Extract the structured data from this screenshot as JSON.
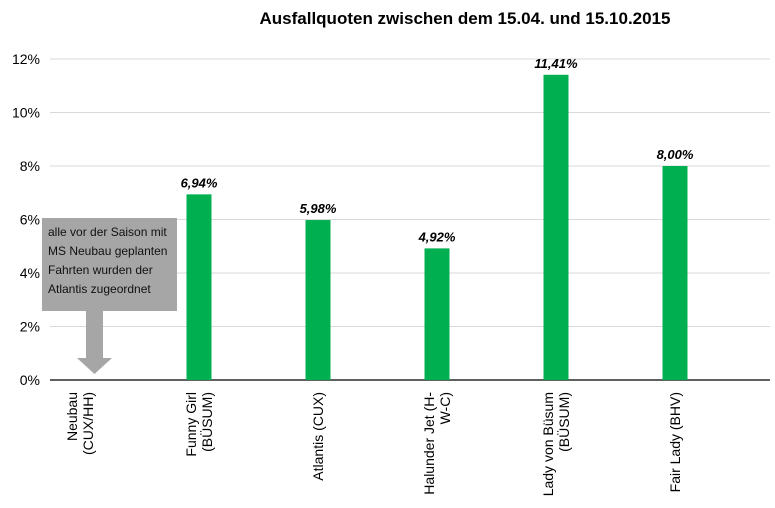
{
  "chart_data": {
    "type": "bar",
    "title": "Ausfallquoten zwischen dem 15.04. und 15.10.2015",
    "xlabel": "",
    "ylabel": "",
    "ylim": [
      0,
      12
    ],
    "yticks": [
      "0%",
      "2%",
      "4%",
      "6%",
      "8%",
      "10%",
      "12%"
    ],
    "grid": true,
    "categories": [
      [
        "Neubau",
        "(CUX/HH)"
      ],
      [
        "Funny Girl",
        "(BÜSUM)"
      ],
      [
        "Atlantis (CUX)"
      ],
      [
        "Halunder Jet (H-",
        "W-C)"
      ],
      [
        "Lady von Büsum",
        "(BÜSUM)"
      ],
      [
        "Fair Lady (BHV)"
      ]
    ],
    "values": [
      null,
      6.94,
      5.98,
      4.92,
      11.41,
      8.0
    ],
    "data_labels": [
      "",
      "6,94%",
      "5,98%",
      "4,92%",
      "11,41%",
      "8,00%"
    ],
    "bar_color": "#00b050",
    "annotation": {
      "lines": [
        "alle vor der Saison mit",
        "MS Neubau geplanten",
        "Fahrten wurden der",
        "Atlantis zugeordnet"
      ],
      "color": "#a6a6a6",
      "points_to_category": 0
    }
  }
}
